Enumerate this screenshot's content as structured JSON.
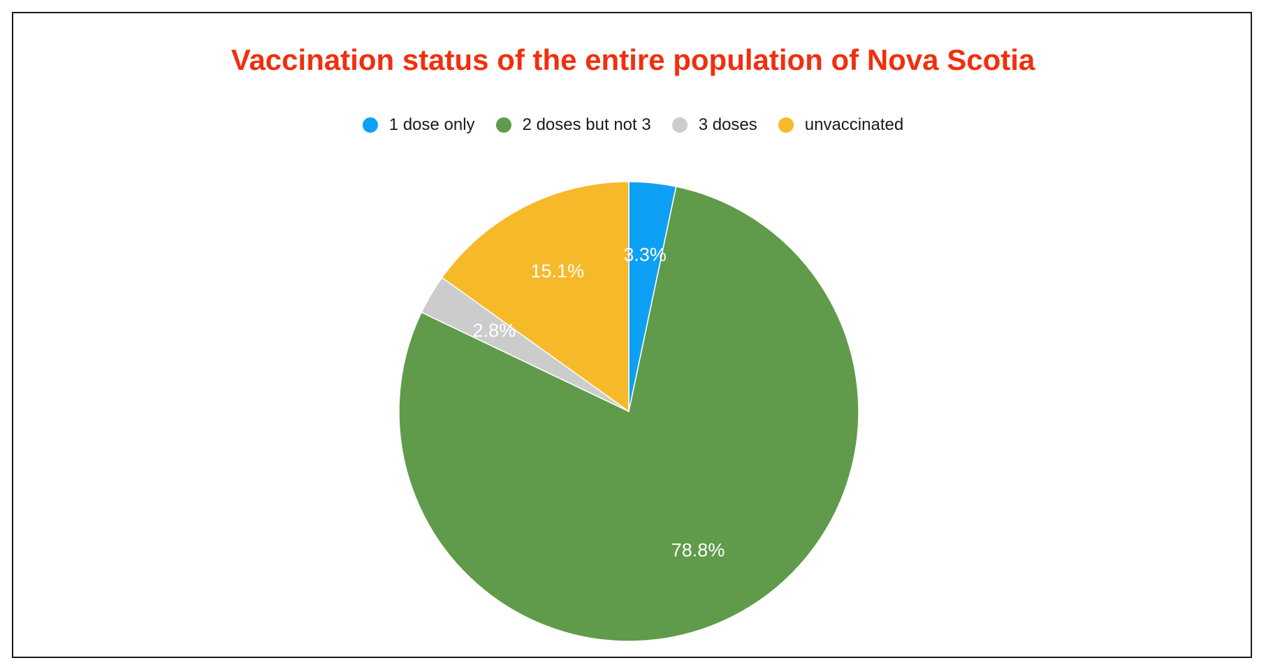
{
  "chart_data": {
    "type": "pie",
    "title": "Vaccination status of the entire population of Nova Scotia",
    "categories": [
      "1 dose only",
      "2 doses but not 3",
      "3 doses",
      "unvaccinated"
    ],
    "values": [
      3.3,
      78.8,
      2.8,
      15.1
    ],
    "labels": [
      "3.3%",
      "78.8%",
      "2.8%",
      "15.1%"
    ],
    "colors": [
      "#0ea0f4",
      "#5f9b4a",
      "#cccccc",
      "#f6b929"
    ],
    "legend_position": "top",
    "start_angle": "12 o'clock",
    "direction": "clockwise"
  },
  "style": {
    "title_color": "#f12f0e",
    "label_color": "#ffffff"
  }
}
